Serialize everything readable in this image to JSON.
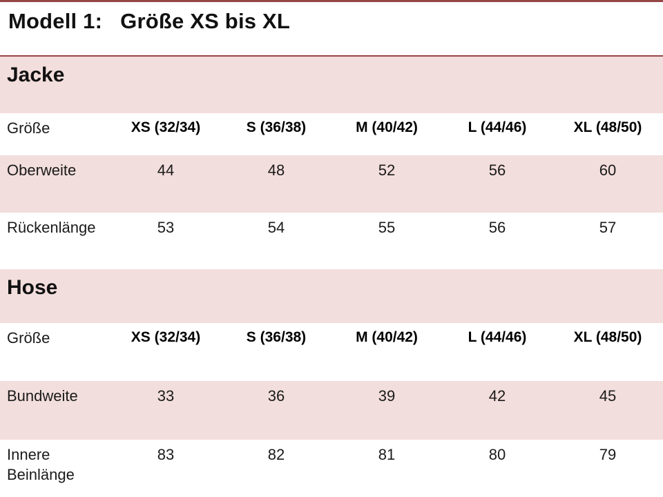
{
  "page": {
    "title_prefix": "Modell 1:",
    "title_main": "Größe XS bis XL"
  },
  "colors": {
    "accent_line": "#964646",
    "band_fill": "#F2DEDC",
    "text": "#1a1a1a"
  },
  "tables": [
    {
      "section_title": "Jacke",
      "size_label": "Größe",
      "columns": [
        "XS (32/34)",
        "S (36/38)",
        "M (40/42)",
        "L (44/46)",
        "XL (48/50)"
      ],
      "rows": [
        {
          "label": "Oberweite",
          "values": [
            "44",
            "48",
            "52",
            "56",
            "60"
          ]
        },
        {
          "label": "Rückenlänge",
          "values": [
            "53",
            "54",
            "55",
            "56",
            "57"
          ]
        }
      ]
    },
    {
      "section_title": "Hose",
      "size_label": "Größe",
      "columns": [
        "XS (32/34)",
        "S (36/38)",
        "M (40/42)",
        "L (44/46)",
        "XL (48/50)"
      ],
      "rows": [
        {
          "label": "Bundweite",
          "values": [
            "33",
            "36",
            "39",
            "42",
            "45"
          ]
        },
        {
          "label": "Innere Beinlänge",
          "values": [
            "83",
            "82",
            "81",
            "80",
            "79"
          ]
        }
      ]
    }
  ]
}
